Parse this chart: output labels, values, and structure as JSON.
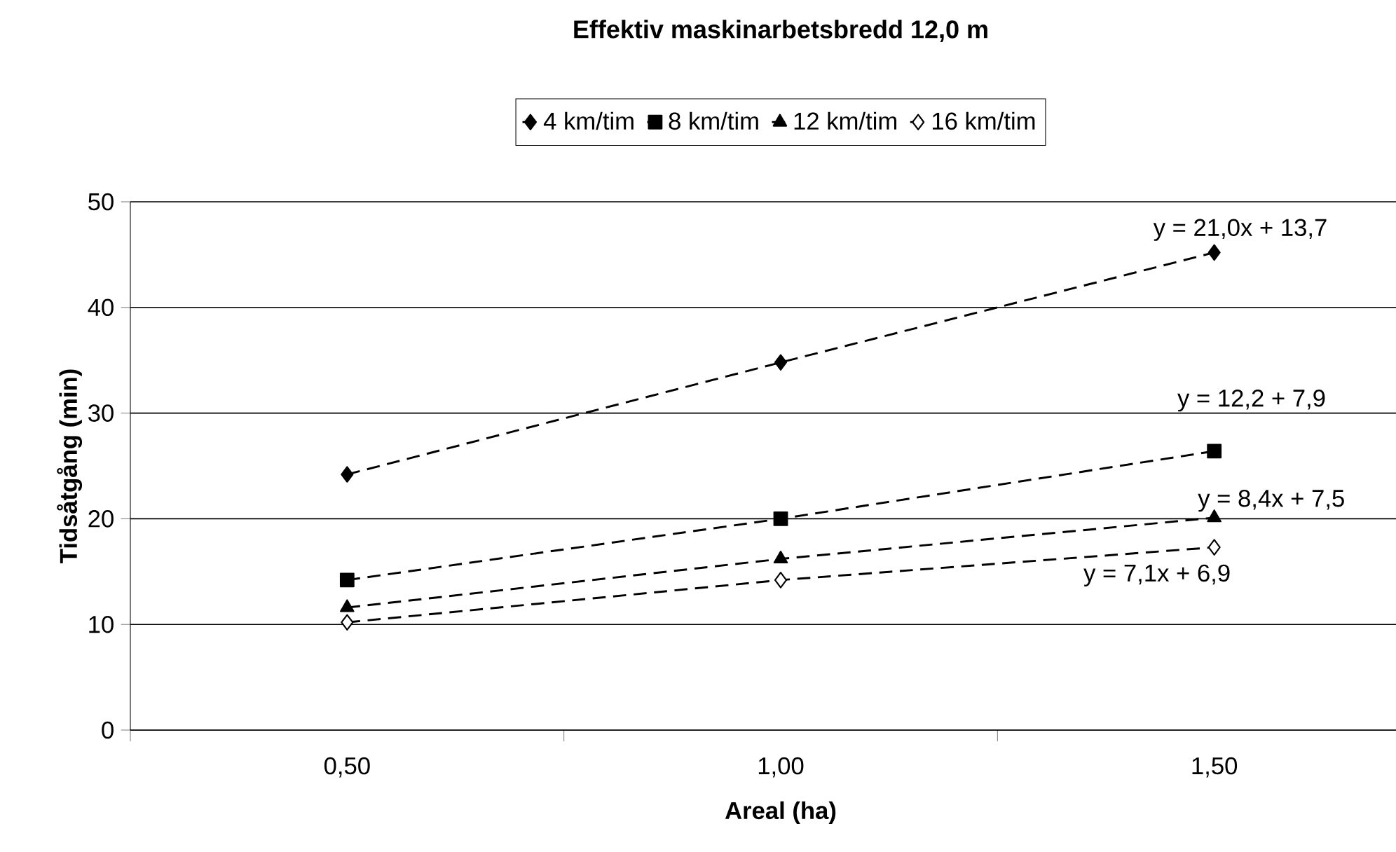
{
  "chart_data": {
    "type": "line",
    "title": "Effektiv maskinarbetsbredd 12,0 m",
    "xlabel": "Areal (ha)",
    "ylabel": "Tidsåtgång (min)",
    "categories": [
      "0,50",
      "1,00",
      "1,50"
    ],
    "series": [
      {
        "name": "4 km/tim",
        "color": "#000000",
        "marker": "diamond",
        "line_style": "dashed",
        "values": [
          24.2,
          34.8,
          45.2
        ]
      },
      {
        "name": "8 km/tim",
        "color": "#000000",
        "marker": "square",
        "line_style": "dashed",
        "values": [
          14.2,
          20.0,
          26.4
        ]
      },
      {
        "name": "12 km/tim",
        "color": "#000000",
        "marker": "triangle",
        "line_style": "dashed",
        "values": [
          11.6,
          16.2,
          20.1
        ]
      },
      {
        "name": "16 km/tim",
        "color": "#000000",
        "marker": "diamond",
        "line_style": "dashed",
        "values": [
          10.2,
          14.2,
          17.3
        ]
      }
    ],
    "annotations": [
      {
        "text": "y = 21,0x + 13,7",
        "x": "1,50",
        "y": 45.2
      },
      {
        "text": "y = 12,2 + 7,9",
        "x": "1,50",
        "y": 26.4
      },
      {
        "text": "y = 8,4x + 7,5",
        "x": "1,50",
        "y": 20.1
      },
      {
        "text": "y = 7,1x + 6,9",
        "x": "1,50",
        "y": 17.3
      }
    ],
    "ylim": [
      0,
      50
    ],
    "yticks": [
      0,
      10,
      20,
      30,
      40,
      50
    ],
    "grid": "y",
    "legend": "top"
  }
}
